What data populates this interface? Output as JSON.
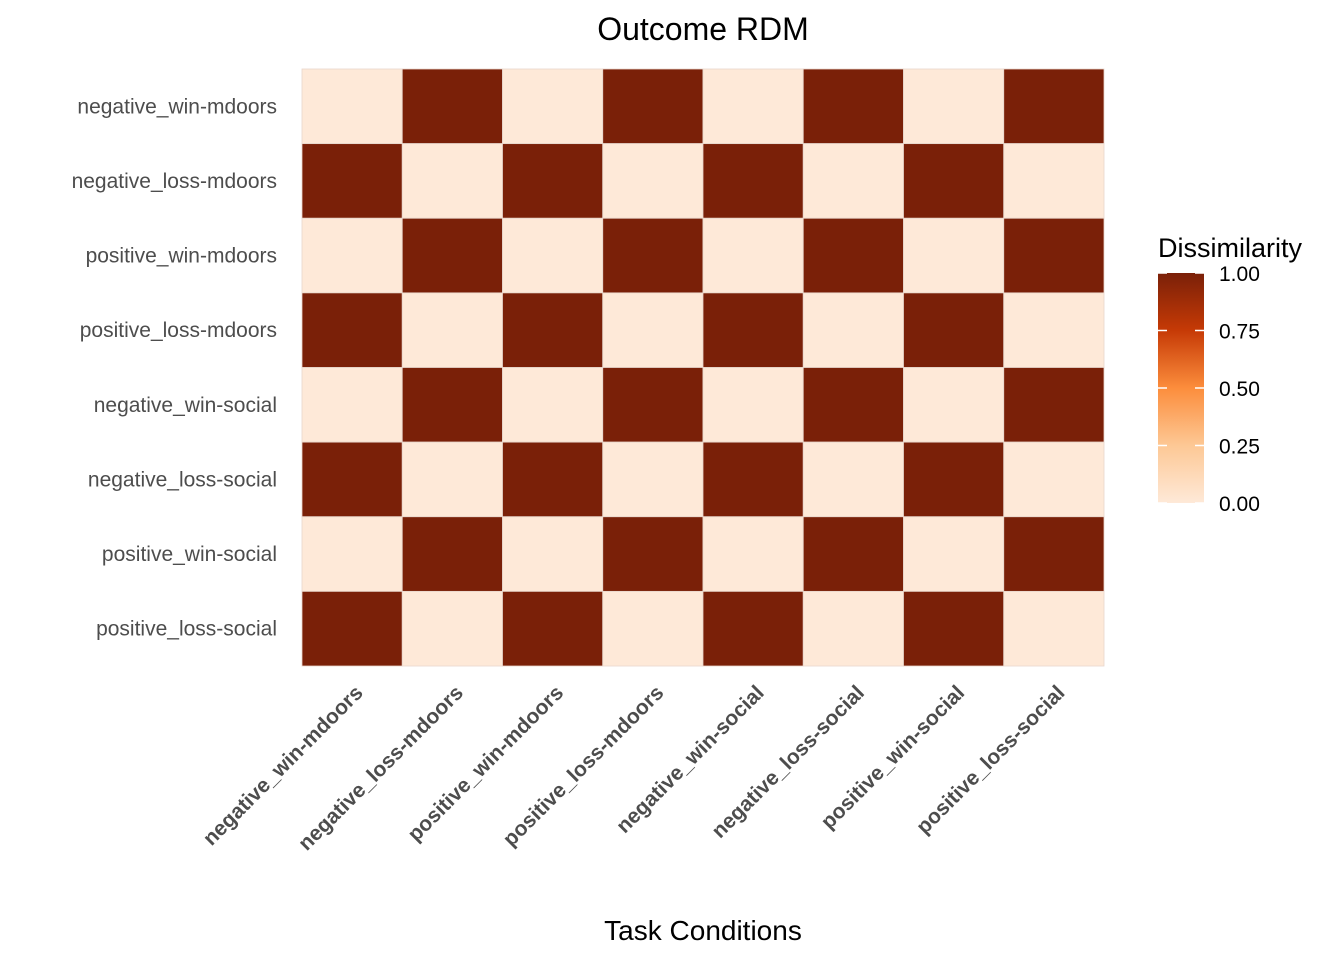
{
  "chart_data": {
    "type": "heatmap",
    "title": "Outcome RDM",
    "xlabel": "Task Conditions",
    "ylabel": "",
    "x_categories": [
      "negative_win-mdoors",
      "negative_loss-mdoors",
      "positive_win-mdoors",
      "positive_loss-mdoors",
      "negative_win-social",
      "negative_loss-social",
      "positive_win-social",
      "positive_loss-social"
    ],
    "y_categories": [
      "negative_win-mdoors",
      "negative_loss-mdoors",
      "positive_win-mdoors",
      "positive_loss-mdoors",
      "negative_win-social",
      "negative_loss-social",
      "positive_win-social",
      "positive_loss-social"
    ],
    "values": [
      [
        0,
        1,
        0,
        1,
        0,
        1,
        0,
        1
      ],
      [
        1,
        0,
        1,
        0,
        1,
        0,
        1,
        0
      ],
      [
        0,
        1,
        0,
        1,
        0,
        1,
        0,
        1
      ],
      [
        1,
        0,
        1,
        0,
        1,
        0,
        1,
        0
      ],
      [
        0,
        1,
        0,
        1,
        0,
        1,
        0,
        1
      ],
      [
        1,
        0,
        1,
        0,
        1,
        0,
        1,
        0
      ],
      [
        0,
        1,
        0,
        1,
        0,
        1,
        0,
        1
      ],
      [
        1,
        0,
        1,
        0,
        1,
        0,
        1,
        0
      ]
    ],
    "legend": {
      "title": "Dissimilarity",
      "ticks": [
        "0.00",
        "0.25",
        "0.50",
        "0.75",
        "1.00"
      ],
      "tick_values": [
        0,
        0.25,
        0.5,
        0.75,
        1
      ],
      "range": [
        0,
        1
      ],
      "placement": "right"
    },
    "colors": {
      "low": "#FEE9D8",
      "mid1": "#FDC895",
      "mid2": "#FC8D3C",
      "mid3": "#E35A13",
      "mid4": "#C63A06",
      "high": "#7A2008",
      "cell_border": "#e8d6cc"
    },
    "grid": false
  }
}
